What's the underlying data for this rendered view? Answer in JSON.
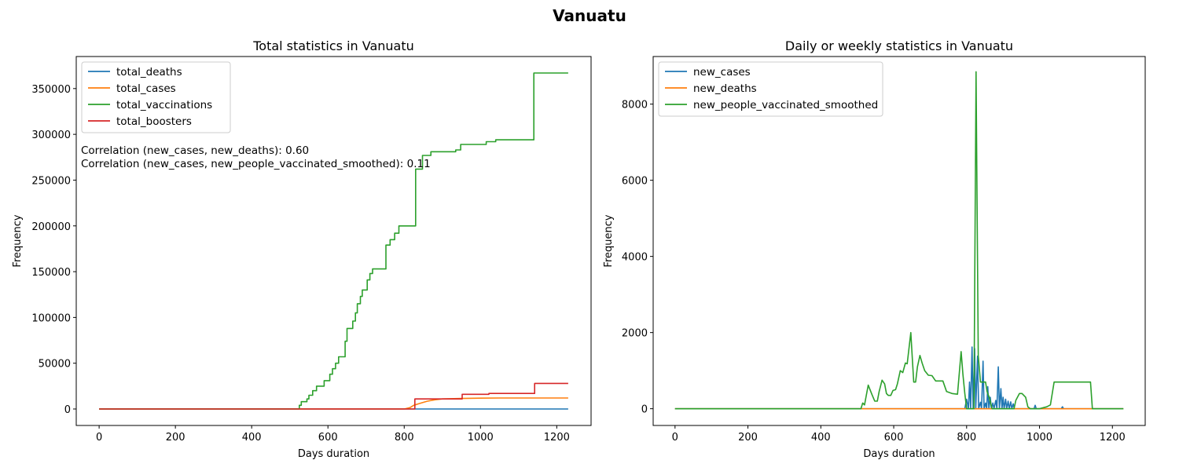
{
  "figure": {
    "title": "Vanuatu"
  },
  "chart_data": [
    {
      "type": "line",
      "title": "Total statistics in Vanuatu",
      "xlabel": "Days duration",
      "ylabel": "Frequency",
      "xlim": [
        -60,
        1290
      ],
      "ylim": [
        -18000,
        385000
      ],
      "xticks": [
        0,
        200,
        400,
        600,
        800,
        1000,
        1200
      ],
      "yticks": [
        0,
        50000,
        100000,
        150000,
        200000,
        250000,
        300000,
        350000
      ],
      "grid": false,
      "legend_position": "top-left",
      "annotations": [
        "Correlation (new_cases, new_deaths): 0.60",
        "Correlation (new_cases, new_people_vaccinated_smoothed): 0.11"
      ],
      "series": [
        {
          "name": "total_deaths",
          "color": "#1f77b4",
          "step": true,
          "points": [
            [
              0,
              0
            ],
            [
              823,
              0
            ],
            [
              825,
              10
            ],
            [
              850,
              14
            ],
            [
              1230,
              14
            ]
          ]
        },
        {
          "name": "total_cases",
          "color": "#ff7f0e",
          "step": false,
          "points": [
            [
              0,
              0
            ],
            [
              800,
              0
            ],
            [
              815,
              1500
            ],
            [
              825,
              4000
            ],
            [
              840,
              6000
            ],
            [
              860,
              8500
            ],
            [
              880,
              10000
            ],
            [
              900,
              11000
            ],
            [
              950,
              11500
            ],
            [
              1000,
              11800
            ],
            [
              1050,
              12000
            ],
            [
              1230,
              12000
            ]
          ]
        },
        {
          "name": "total_vaccinations",
          "color": "#2ca02c",
          "step": true,
          "points": [
            [
              0,
              0
            ],
            [
              520,
              0
            ],
            [
              525,
              4000
            ],
            [
              530,
              8000
            ],
            [
              545,
              11000
            ],
            [
              550,
              15000
            ],
            [
              560,
              20000
            ],
            [
              570,
              25000
            ],
            [
              590,
              31000
            ],
            [
              605,
              38000
            ],
            [
              612,
              44000
            ],
            [
              620,
              50000
            ],
            [
              628,
              57000
            ],
            [
              645,
              74000
            ],
            [
              650,
              88000
            ],
            [
              665,
              96000
            ],
            [
              672,
              105000
            ],
            [
              677,
              115000
            ],
            [
              685,
              123000
            ],
            [
              690,
              130000
            ],
            [
              703,
              141000
            ],
            [
              710,
              148000
            ],
            [
              717,
              153000
            ],
            [
              752,
              179000
            ],
            [
              763,
              185000
            ],
            [
              775,
              192000
            ],
            [
              786,
              200000
            ],
            [
              830,
              262000
            ],
            [
              848,
              277000
            ],
            [
              870,
              281000
            ],
            [
              935,
              283000
            ],
            [
              948,
              289000
            ],
            [
              1015,
              292000
            ],
            [
              1040,
              294000
            ],
            [
              1140,
              367000
            ],
            [
              1230,
              367000
            ]
          ]
        },
        {
          "name": "total_boosters",
          "color": "#d62728",
          "step": true,
          "points": [
            [
              0,
              0
            ],
            [
              825,
              0
            ],
            [
              828,
              11000
            ],
            [
              950,
              11000
            ],
            [
              952,
              16000
            ],
            [
              1020,
              16000
            ],
            [
              1022,
              17000
            ],
            [
              1140,
              17000
            ],
            [
              1142,
              28000
            ],
            [
              1230,
              28000
            ]
          ]
        }
      ]
    },
    {
      "type": "line",
      "title": "Daily or weekly statistics in Vanuatu",
      "xlabel": "Days duration",
      "ylabel": "Frequency",
      "xlim": [
        -60,
        1290
      ],
      "ylim": [
        -440,
        9250
      ],
      "xticks": [
        0,
        200,
        400,
        600,
        800,
        1000,
        1200
      ],
      "yticks": [
        0,
        2000,
        4000,
        6000,
        8000
      ],
      "grid": false,
      "legend_position": "top-left",
      "series": [
        {
          "name": "new_cases",
          "color": "#1f77b4",
          "step": false,
          "points": [
            [
              0,
              0
            ],
            [
              795,
              0
            ],
            [
              800,
              250
            ],
            [
              805,
              0
            ],
            [
              808,
              700
            ],
            [
              811,
              0
            ],
            [
              815,
              1620
            ],
            [
              818,
              0
            ],
            [
              822,
              1580
            ],
            [
              825,
              0
            ],
            [
              830,
              1380
            ],
            [
              833,
              0
            ],
            [
              838,
              170
            ],
            [
              841,
              0
            ],
            [
              845,
              1250
            ],
            [
              848,
              0
            ],
            [
              852,
              150
            ],
            [
              855,
              0
            ],
            [
              858,
              580
            ],
            [
              861,
              0
            ],
            [
              865,
              300
            ],
            [
              868,
              0
            ],
            [
              872,
              150
            ],
            [
              875,
              0
            ],
            [
              880,
              220
            ],
            [
              883,
              0
            ],
            [
              887,
              1100
            ],
            [
              890,
              0
            ],
            [
              894,
              530
            ],
            [
              897,
              0
            ],
            [
              900,
              300
            ],
            [
              903,
              0
            ],
            [
              907,
              250
            ],
            [
              910,
              0
            ],
            [
              914,
              200
            ],
            [
              917,
              0
            ],
            [
              921,
              180
            ],
            [
              924,
              0
            ],
            [
              928,
              130
            ],
            [
              931,
              0
            ],
            [
              985,
              0
            ],
            [
              988,
              90
            ],
            [
              991,
              0
            ],
            [
              1060,
              0
            ],
            [
              1063,
              50
            ],
            [
              1066,
              0
            ],
            [
              1230,
              0
            ]
          ]
        },
        {
          "name": "new_deaths",
          "color": "#ff7f0e",
          "step": false,
          "points": [
            [
              0,
              0
            ],
            [
              1230,
              0
            ]
          ]
        },
        {
          "name": "new_people_vaccinated_smoothed",
          "color": "#2ca02c",
          "step": false,
          "points": [
            [
              0,
              0
            ],
            [
              510,
              0
            ],
            [
              515,
              150
            ],
            [
              520,
              100
            ],
            [
              530,
              620
            ],
            [
              540,
              380
            ],
            [
              548,
              200
            ],
            [
              555,
              200
            ],
            [
              560,
              450
            ],
            [
              568,
              750
            ],
            [
              575,
              650
            ],
            [
              580,
              400
            ],
            [
              585,
              350
            ],
            [
              592,
              350
            ],
            [
              598,
              480
            ],
            [
              605,
              500
            ],
            [
              610,
              650
            ],
            [
              618,
              1000
            ],
            [
              625,
              950
            ],
            [
              632,
              1200
            ],
            [
              637,
              1180
            ],
            [
              643,
              1680
            ],
            [
              647,
              2000
            ],
            [
              650,
              1500
            ],
            [
              655,
              700
            ],
            [
              660,
              700
            ],
            [
              665,
              1100
            ],
            [
              672,
              1400
            ],
            [
              678,
              1200
            ],
            [
              685,
              1000
            ],
            [
              695,
              880
            ],
            [
              705,
              870
            ],
            [
              715,
              730
            ],
            [
              725,
              730
            ],
            [
              735,
              730
            ],
            [
              745,
              450
            ],
            [
              760,
              400
            ],
            [
              775,
              380
            ],
            [
              785,
              1500
            ],
            [
              790,
              900
            ],
            [
              795,
              400
            ],
            [
              800,
              0
            ],
            [
              815,
              0
            ],
            [
              820,
              0
            ],
            [
              826,
              8850
            ],
            [
              832,
              1400
            ],
            [
              838,
              700
            ],
            [
              845,
              700
            ],
            [
              852,
              700
            ],
            [
              856,
              450
            ],
            [
              862,
              300
            ],
            [
              870,
              0
            ],
            [
              895,
              0
            ],
            [
              905,
              0
            ],
            [
              915,
              0
            ],
            [
              930,
              0
            ],
            [
              935,
              220
            ],
            [
              945,
              400
            ],
            [
              952,
              400
            ],
            [
              962,
              300
            ],
            [
              968,
              50
            ],
            [
              975,
              0
            ],
            [
              1000,
              0
            ],
            [
              1020,
              50
            ],
            [
              1030,
              100
            ],
            [
              1040,
              700
            ],
            [
              1140,
              700
            ],
            [
              1145,
              0
            ],
            [
              1230,
              0
            ]
          ]
        }
      ]
    }
  ]
}
